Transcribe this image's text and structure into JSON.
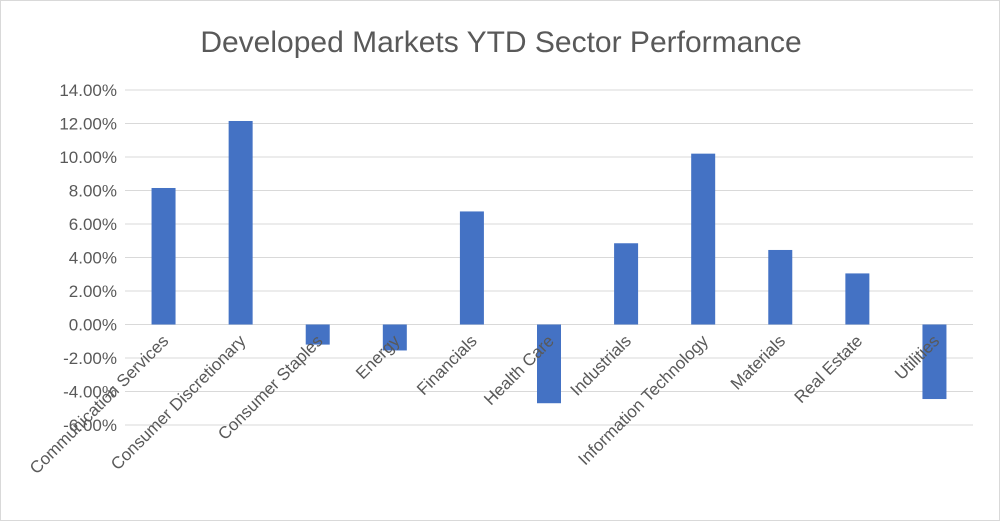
{
  "chart_data": {
    "type": "bar",
    "title": "Developed Markets YTD Sector Performance",
    "categories": [
      "Communication Services",
      "Consumer Discretionary",
      "Consumer Staples",
      "Energy",
      "Financials",
      "Health Care",
      "Industrials",
      "Information Technology",
      "Materials",
      "Real Estate",
      "Utilities"
    ],
    "values": [
      8.15,
      12.15,
      -1.2,
      -1.55,
      6.75,
      -4.7,
      4.85,
      10.2,
      4.45,
      3.05,
      -4.45
    ],
    "value_format": "percent_2dp",
    "ylim": [
      -6,
      14
    ],
    "ytick_step": 2,
    "ytick_labels": [
      "14.00%",
      "12.00%",
      "10.00%",
      "8.00%",
      "6.00%",
      "4.00%",
      "2.00%",
      "0.00%",
      "-2.00%",
      "-4.00%",
      "-6.00%"
    ],
    "xlabel": "",
    "ylabel": "",
    "grid": true,
    "legend": "none",
    "bar_color": "#4472c4"
  }
}
